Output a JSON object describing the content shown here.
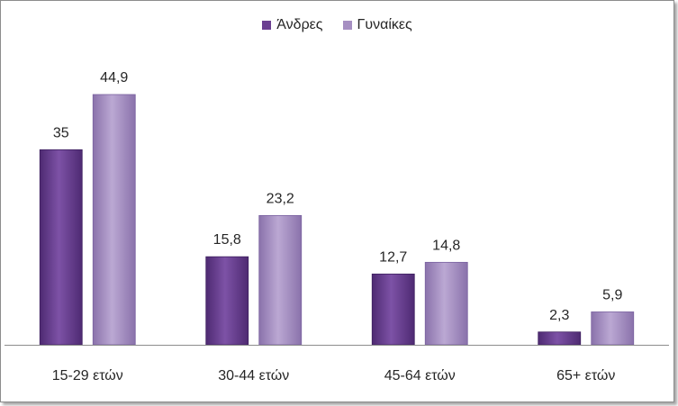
{
  "chart_data": {
    "type": "bar",
    "categories": [
      "15-29 ετών",
      "30-44 ετών",
      "45-64 ετών",
      "65+ ετών"
    ],
    "series": [
      {
        "name": "Άνδρες",
        "values": [
          35,
          15.8,
          12.7,
          2.3
        ],
        "labels": [
          "35",
          "15,8",
          "12,7",
          "2,3"
        ],
        "color": "#6b3f91"
      },
      {
        "name": "Γυναίκες",
        "values": [
          44.9,
          23.2,
          14.8,
          5.9
        ],
        "labels": [
          "44,9",
          "23,2",
          "14,8",
          "5,9"
        ],
        "color": "#a68fc2"
      }
    ],
    "ylim": [
      0,
      50
    ],
    "legend": "top-center",
    "grid": false
  }
}
